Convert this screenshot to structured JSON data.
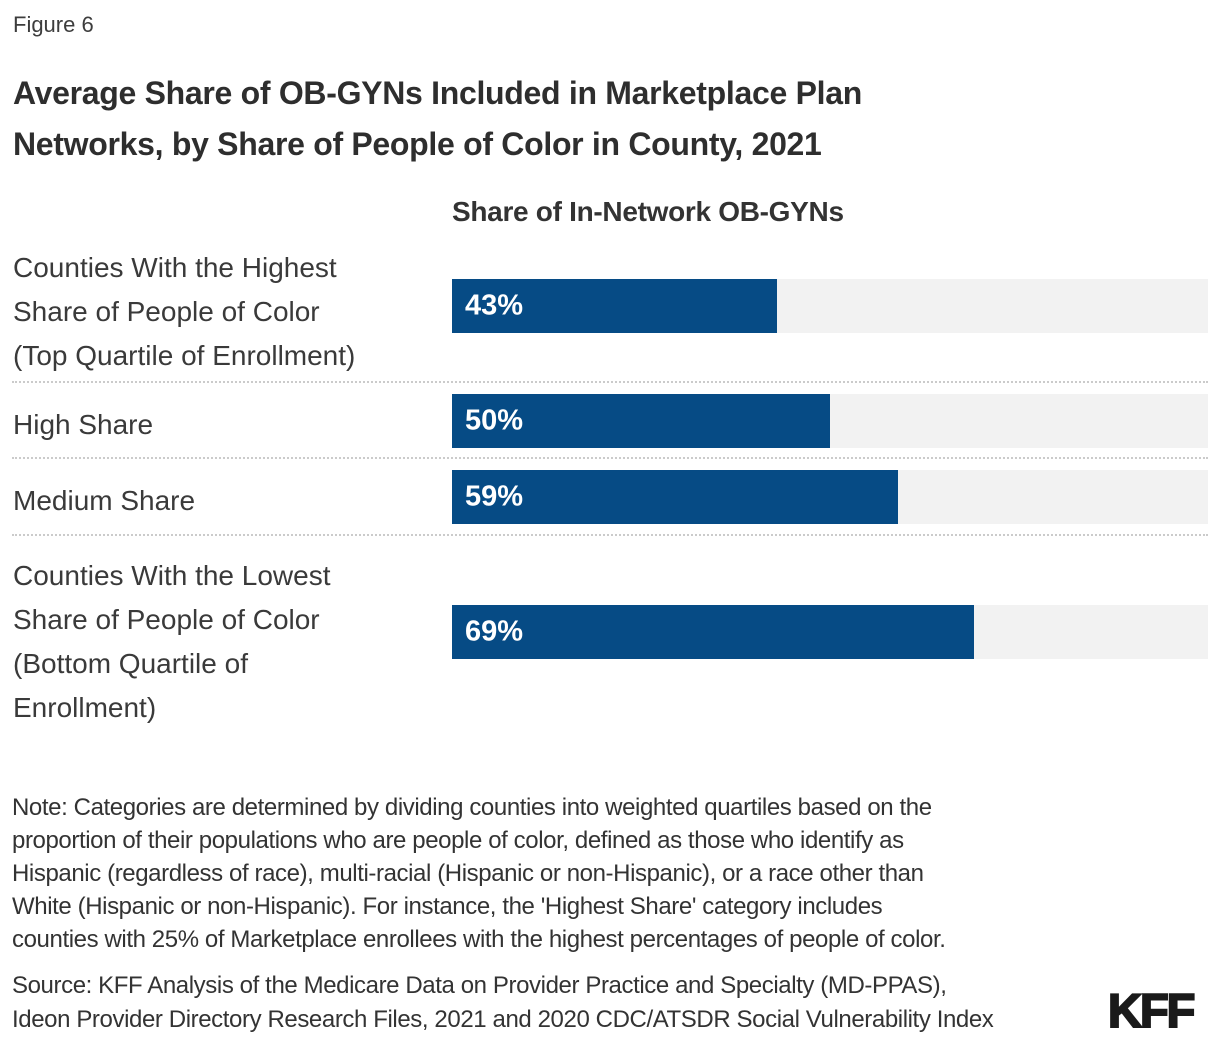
{
  "figure_label": "Figure 6",
  "title": "Average Share of OB-GYNs Included in Marketplace Plan\nNetworks, by Share of People of Color in County, 2021",
  "chart_data": {
    "type": "bar",
    "orientation": "horizontal",
    "header": "Share of In-Network OB-GYNs",
    "categories": [
      "Counties With the Highest Share of People of Color (Top Quartile of Enrollment)",
      "High Share",
      "Medium Share",
      "Counties With the Lowest Share of People of Color (Bottom Quartile of Enrollment)"
    ],
    "values": [
      43,
      50,
      59,
      69
    ],
    "value_labels": [
      "43%",
      "50%",
      "59%",
      "69%"
    ],
    "xlim": [
      0,
      100
    ],
    "legend": "none",
    "grid": "off",
    "row_labels_multiline": [
      "Counties With the Highest\nShare of People of Color\n(Top Quartile of Enrollment)",
      "High Share",
      "Medium Share",
      "Counties With the Lowest\nShare of People of Color\n(Bottom Quartile of\nEnrollment)"
    ],
    "colors": {
      "bar": "#064b85",
      "track": "#f2f2f2",
      "value_text": "#ffffff"
    }
  },
  "note": "Note: Categories are determined by dividing counties into weighted quartiles based on the\nproportion of their populations who are people of color, defined as those who identify as\nHispanic (regardless of race), multi-racial (Hispanic or non-Hispanic), or a race other than\nWhite (Hispanic or non-Hispanic). For instance, the 'Highest Share' category includes\ncounties with 25% of Marketplace enrollees with the highest percentages of people of color.",
  "source": "Source: KFF Analysis of the Medicare Data on Provider Practice and Specialty (MD-PPAS),\nIdeon Provider Directory Research Files, 2021 and 2020 CDC/ATSDR Social Vulnerability Index",
  "logo": "KFF"
}
